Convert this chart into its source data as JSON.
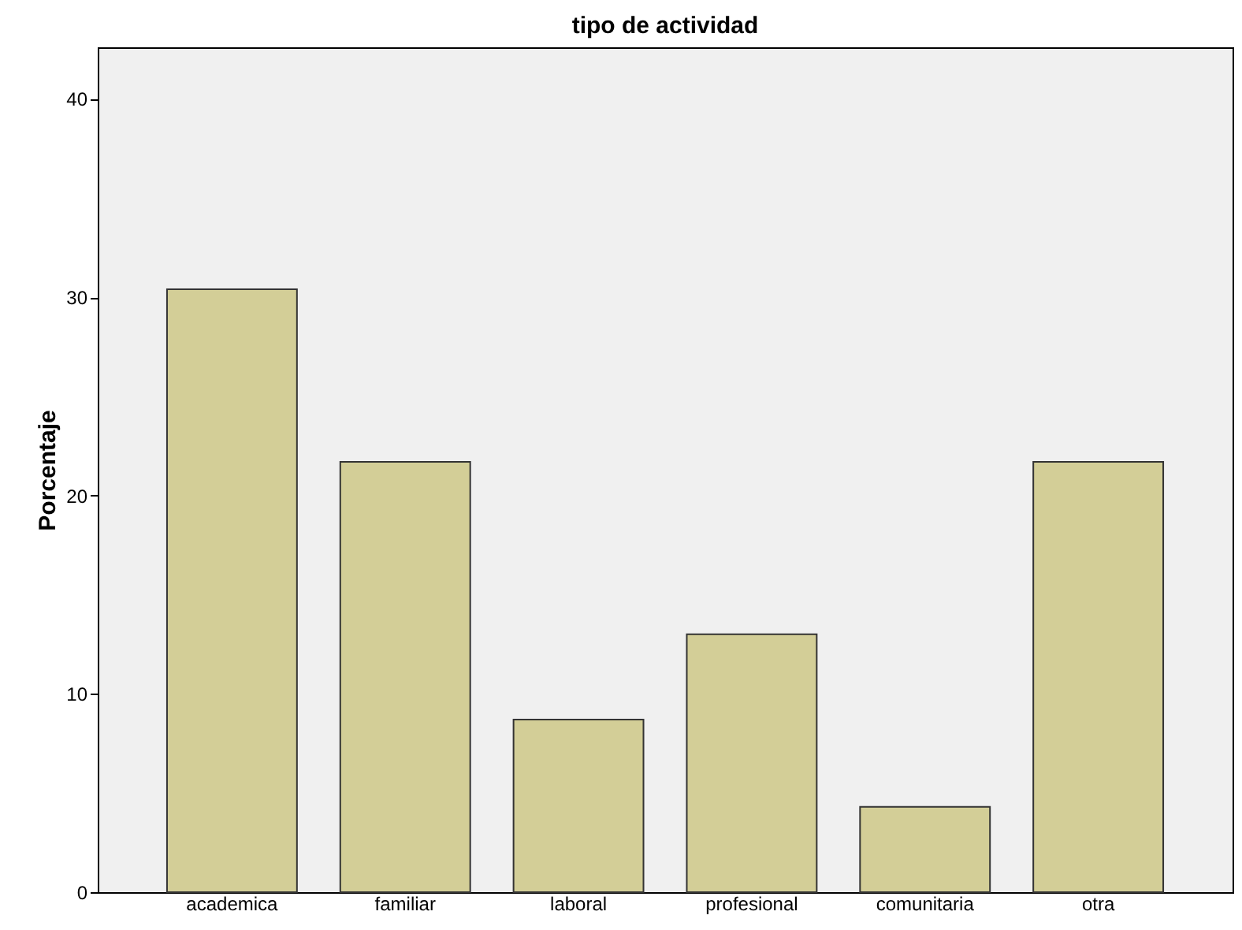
{
  "chart_data": {
    "type": "bar",
    "title": "tipo de actividad",
    "ylabel": "Porcentaje",
    "categories": [
      "academica",
      "familiar",
      "laboral",
      "profesional",
      "comunitaria",
      "otra"
    ],
    "values": [
      30.4,
      21.7,
      8.7,
      13.0,
      4.3,
      21.7
    ],
    "color": "#d3ce97",
    "ylim": [
      0,
      42.6
    ],
    "yticks": [
      0,
      10,
      20,
      30,
      40
    ],
    "grid": false
  }
}
